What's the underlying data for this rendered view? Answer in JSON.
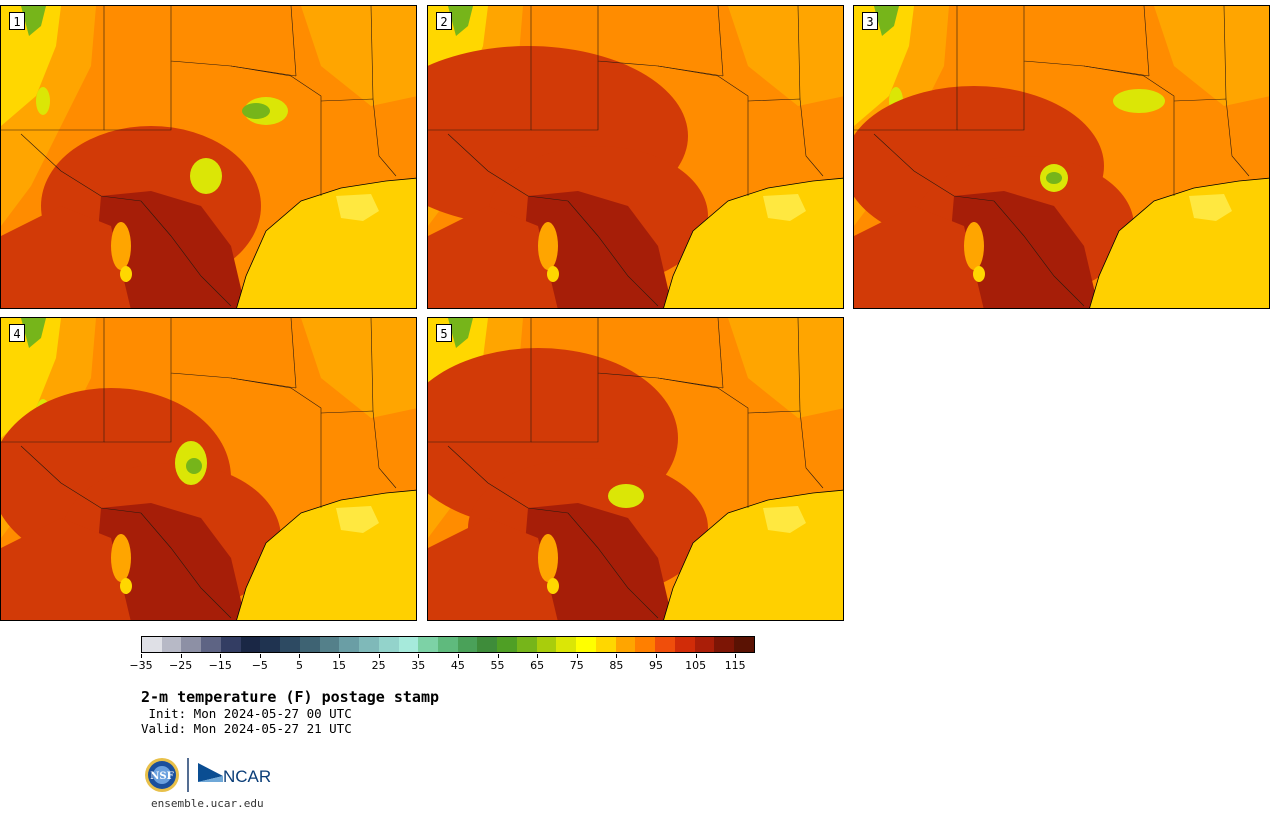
{
  "product": {
    "title": "2-m temperature (F) postage stamp",
    "init": " Init: Mon 2024-05-27 00 UTC",
    "valid": "Valid: Mon 2024-05-27 21 UTC"
  },
  "members": [
    {
      "label": "1"
    },
    {
      "label": "2"
    },
    {
      "label": "3"
    },
    {
      "label": "4"
    },
    {
      "label": "5"
    }
  ],
  "colorbar": {
    "min": -35,
    "max": 120,
    "step": 5,
    "tick_labels": [
      "−35",
      "−25",
      "−15",
      "−5",
      "5",
      "15",
      "25",
      "35",
      "45",
      "55",
      "65",
      "75",
      "85",
      "95",
      "105",
      "115"
    ],
    "colors": [
      "#dfe0e6",
      "#b7b9c6",
      "#8d90a5",
      "#5e6484",
      "#333d63",
      "#1a2745",
      "#1f3350",
      "#2d4a62",
      "#3e6373",
      "#54808a",
      "#6a9ea5",
      "#7fb9b9",
      "#93d3cb",
      "#a6eadb",
      "#7dd2a6",
      "#5fba7d",
      "#4aa159",
      "#3e8c3a",
      "#4f9f25",
      "#76b51a",
      "#a9cd0c",
      "#dbe606",
      "#ffff00",
      "#ffd700",
      "#ffa500",
      "#ff7f00",
      "#f04e0b",
      "#d12c08",
      "#aa1e08",
      "#7d1505",
      "#5a1203"
    ]
  },
  "map_colors": {
    "base": "#ff8c00",
    "hot": "#d23a07",
    "very_hot": "#a61e08",
    "warm": "#ffa500",
    "mild": "#ffd700",
    "cool": "#dbe606",
    "green": "#76b51a",
    "water": "#ffd000",
    "lake": "#ffe840"
  },
  "footer": {
    "logos": [
      "NSF",
      "NCAR"
    ],
    "site": "ensemble.ucar.edu"
  }
}
